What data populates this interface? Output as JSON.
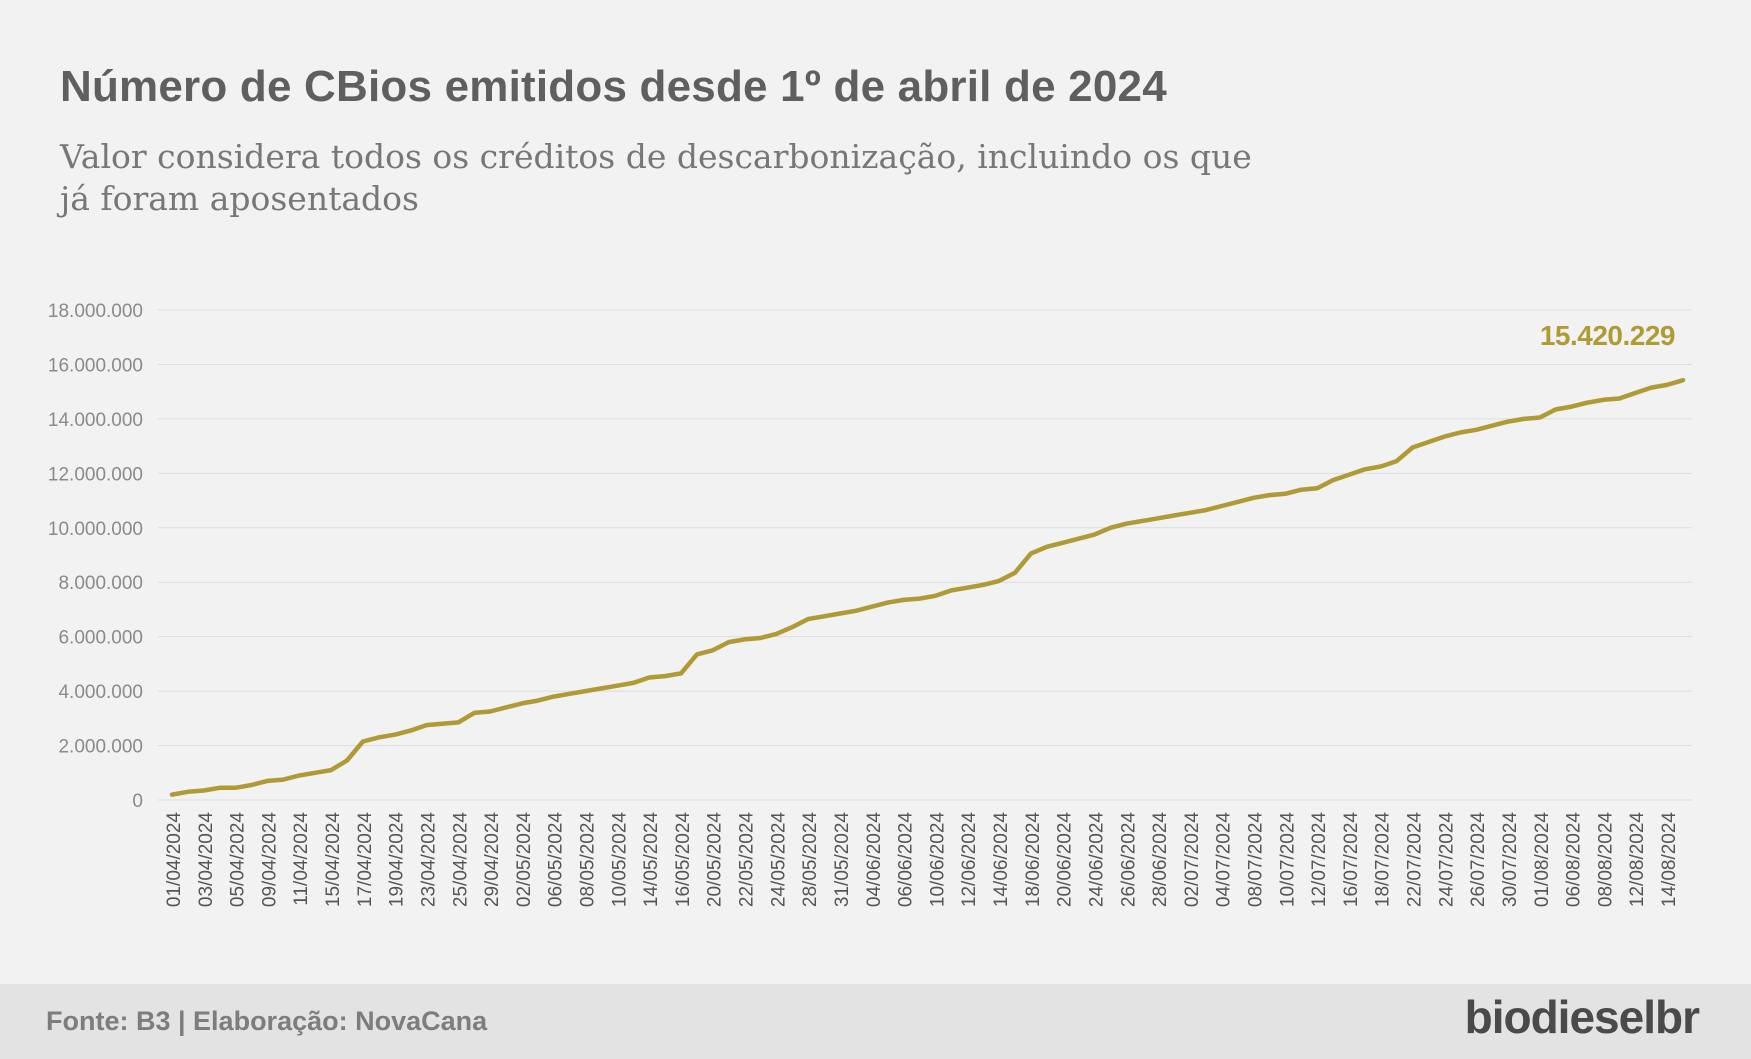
{
  "header": {
    "title": "Número de CBios emitidos desde 1º de abril de 2024",
    "subtitle": "Valor considera todos os créditos de descarbonização, incluindo os que já foram aposentados"
  },
  "footer": {
    "source": "Fonte: B3 | Elaboração: NovaCana",
    "logo_text": "biodieselbr"
  },
  "colors": {
    "line": "#b09a35",
    "label": "#b09a35",
    "grid": "#dddddd",
    "axis_text": "#8a8a8a"
  },
  "chart_data": {
    "type": "line",
    "ylim": [
      0,
      18000000
    ],
    "yticks": [
      0,
      2000000,
      4000000,
      6000000,
      8000000,
      10000000,
      12000000,
      14000000,
      16000000,
      18000000
    ],
    "ytick_labels": [
      "0",
      "2.000.000",
      "4.000.000",
      "6.000.000",
      "8.000.000",
      "10.000.000",
      "12.000.000",
      "14.000.000",
      "16.000.000",
      "18.000.000"
    ],
    "xtick_labels": [
      "01/04/2024",
      "03/04/2024",
      "05/04/2024",
      "09/04/2024",
      "11/04/2024",
      "15/04/2024",
      "17/04/2024",
      "19/04/2024",
      "23/04/2024",
      "25/04/2024",
      "29/04/2024",
      "02/05/2024",
      "06/05/2024",
      "08/05/2024",
      "10/05/2024",
      "14/05/2024",
      "16/05/2024",
      "20/05/2024",
      "22/05/2024",
      "24/05/2024",
      "28/05/2024",
      "31/05/2024",
      "04/06/2024",
      "06/06/2024",
      "10/06/2024",
      "12/06/2024",
      "14/06/2024",
      "18/06/2024",
      "20/06/2024",
      "24/06/2024",
      "26/06/2024",
      "28/06/2024",
      "02/07/2024",
      "04/07/2024",
      "08/07/2024",
      "10/07/2024",
      "12/07/2024",
      "16/07/2024",
      "18/07/2024",
      "22/07/2024",
      "24/07/2024",
      "26/07/2024",
      "30/07/2024",
      "01/08/2024",
      "06/08/2024",
      "08/08/2024",
      "12/08/2024",
      "14/08/2024"
    ],
    "end_label": "15.420.229",
    "values": [
      200000,
      300000,
      350000,
      450000,
      450000,
      550000,
      700000,
      750000,
      900000,
      1000000,
      1100000,
      1450000,
      2150000,
      2300000,
      2400000,
      2550000,
      2750000,
      2800000,
      2850000,
      3200000,
      3250000,
      3400000,
      3550000,
      3650000,
      3800000,
      3900000,
      4000000,
      4100000,
      4200000,
      4300000,
      4500000,
      4550000,
      4650000,
      5350000,
      5500000,
      5800000,
      5900000,
      5950000,
      6100000,
      6350000,
      6650000,
      6750000,
      6850000,
      6950000,
      7100000,
      7250000,
      7350000,
      7400000,
      7500000,
      7700000,
      7800000,
      7900000,
      8050000,
      8350000,
      9050000,
      9300000,
      9450000,
      9600000,
      9750000,
      10000000,
      10150000,
      10250000,
      10350000,
      10450000,
      10550000,
      10650000,
      10800000,
      10950000,
      11100000,
      11200000,
      11250000,
      11400000,
      11450000,
      11750000,
      11950000,
      12150000,
      12250000,
      12450000,
      12950000,
      13150000,
      13350000,
      13500000,
      13600000,
      13750000,
      13900000,
      14000000,
      14050000,
      14350000,
      14450000,
      14600000,
      14700000,
      14750000,
      14950000,
      15150000,
      15250000,
      15420229
    ]
  }
}
